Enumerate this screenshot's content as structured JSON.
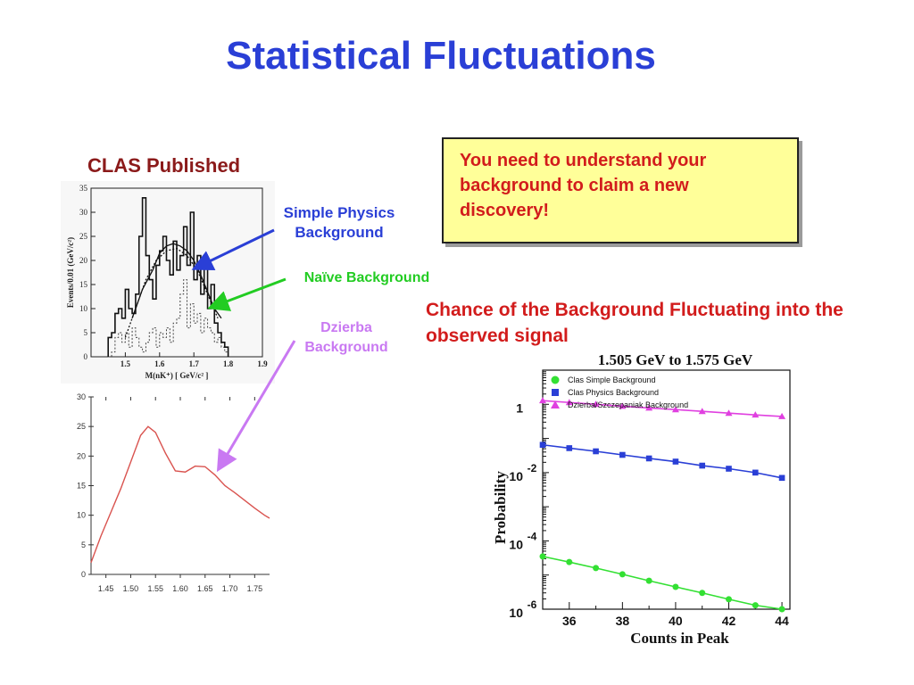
{
  "slide": {
    "title": "Statistical Fluctuations",
    "clas_heading": "CLAS Published",
    "callout_text": "You need to understand your background to claim a new discovery!",
    "chance_text": "Chance of the Background Fluctuating into the observed signal",
    "notes": {
      "simple_physics": "Simple Physics Background",
      "naive": "Naïve Background",
      "dzierba": "Dzierba Background"
    },
    "colors": {
      "title": "#2a3fd6",
      "clas_heading": "#8b1a1a",
      "simple_physics": "#2a3fd6",
      "naive": "#22cc22",
      "dzierba": "#c979f2",
      "callout_bg": "#ffff99",
      "red_text": "#d21c1c"
    }
  },
  "chart_data": [
    {
      "type": "histogram",
      "xlabel": "M(nK⁺) [ GeV/c² ]",
      "ylabel": "Events/0.01 (GeV/c²)",
      "xlim": [
        1.4,
        1.9
      ],
      "ylim": [
        0,
        35
      ],
      "xticks": [
        1.5,
        1.6,
        1.7,
        1.8,
        1.9
      ],
      "yticks": [
        0,
        5,
        10,
        15,
        20,
        25,
        30,
        35
      ],
      "bins": {
        "x0": [
          1.45,
          1.46,
          1.47,
          1.48,
          1.49,
          1.5,
          1.51,
          1.52,
          1.53,
          1.54,
          1.55,
          1.56,
          1.57,
          1.58,
          1.59,
          1.6,
          1.61,
          1.62,
          1.63,
          1.64,
          1.65,
          1.66,
          1.67,
          1.68,
          1.69,
          1.7,
          1.71,
          1.72,
          1.73,
          1.74,
          1.75,
          1.76,
          1.77,
          1.78,
          1.79
        ],
        "width": 0.01,
        "data": [
          4,
          5,
          9,
          10,
          8,
          14,
          10,
          9,
          13,
          25,
          33,
          21,
          16,
          12,
          19,
          22,
          25,
          20,
          17,
          24,
          18,
          21,
          27,
          19,
          30,
          16,
          21,
          13,
          20,
          10,
          15,
          7,
          5,
          3,
          2
        ],
        "dotted": [
          0,
          1,
          4,
          5,
          3,
          5,
          2,
          6,
          4,
          2,
          1,
          3,
          5,
          6,
          2,
          5,
          4,
          6,
          3,
          7,
          8,
          13,
          16,
          6,
          11,
          7,
          9,
          5,
          8,
          6,
          5,
          3,
          4,
          2,
          1
        ]
      },
      "fits": {
        "simple_physics": {
          "x": [
            1.52,
            1.55,
            1.58,
            1.6,
            1.62,
            1.64,
            1.66,
            1.68,
            1.7,
            1.72,
            1.74,
            1.76,
            1.78
          ],
          "y": [
            8,
            14,
            18,
            21.5,
            23,
            23.5,
            23,
            22,
            20,
            17,
            13.5,
            10,
            8
          ]
        },
        "naive": {
          "x": [
            1.5,
            1.53,
            1.56,
            1.59,
            1.62,
            1.65,
            1.68,
            1.71,
            1.74,
            1.77
          ],
          "y": [
            4,
            10,
            16,
            20,
            22,
            22.5,
            21,
            18,
            13,
            8
          ]
        }
      }
    },
    {
      "type": "line",
      "xlim": [
        1.42,
        1.78
      ],
      "ylim": [
        0,
        30
      ],
      "xticks": [
        1.45,
        1.5,
        1.55,
        1.6,
        1.65,
        1.7,
        1.75
      ],
      "xtick_labels": [
        "1.45",
        "1.50",
        "1.55",
        "1.60",
        "1.65",
        "1.70",
        "1.75"
      ],
      "yticks": [
        0,
        5,
        10,
        15,
        20,
        25,
        30
      ],
      "series": [
        {
          "x": [
            1.42,
            1.44,
            1.46,
            1.48,
            1.5,
            1.52,
            1.535,
            1.55,
            1.57,
            1.59,
            1.61,
            1.63,
            1.65,
            1.67,
            1.69,
            1.71,
            1.73,
            1.75,
            1.77,
            1.78
          ],
          "y": [
            2,
            6.5,
            10.5,
            14.5,
            19,
            23.5,
            25,
            24,
            20.5,
            17.5,
            17.3,
            18.3,
            18.2,
            16.8,
            15,
            13.8,
            12.5,
            11.2,
            10,
            9.5
          ],
          "color": "#d9534f"
        }
      ]
    },
    {
      "type": "scatter",
      "title": "1.505 GeV to 1.575 GeV",
      "xlabel": "Counts in Peak",
      "ylabel": "Probability",
      "scale_y": "log",
      "xlim": [
        35,
        44.3
      ],
      "ylim": [
        1e-06,
        10
      ],
      "xticks": [
        36,
        38,
        40,
        42,
        44
      ],
      "ytick_labels": [
        {
          "base": "1",
          "exp": ""
        },
        {
          "base": "10",
          "exp": "-2"
        },
        {
          "base": "10",
          "exp": "-4"
        },
        {
          "base": "10",
          "exp": "-6"
        }
      ],
      "ytick_values": [
        1,
        0.01,
        0.0001,
        1e-06
      ],
      "legend_position": "top-left",
      "series": [
        {
          "name": "Clas Simple Background",
          "marker": "circle",
          "color": "#33e033",
          "x": [
            35,
            36,
            37,
            38,
            39,
            40,
            41,
            42,
            43,
            44
          ],
          "y": [
            3.5e-05,
            2.4e-05,
            1.6e-05,
            1.05e-05,
            6.8e-06,
            4.5e-06,
            3e-06,
            1.95e-06,
            1.3e-06,
            1e-06
          ]
        },
        {
          "name": "Clas Physics Background",
          "marker": "square",
          "color": "#2a3fd6",
          "x": [
            35,
            36,
            37,
            38,
            39,
            40,
            41,
            42,
            43,
            44
          ],
          "y": [
            0.065,
            0.052,
            0.042,
            0.033,
            0.026,
            0.021,
            0.016,
            0.013,
            0.01,
            0.007
          ]
        },
        {
          "name": "Dzierba/Szczepaniak Background",
          "marker": "triangle",
          "color": "#e040e0",
          "x": [
            35,
            36,
            37,
            38,
            39,
            40,
            41,
            42,
            43,
            44
          ],
          "y": [
            1.28,
            1.13,
            1.0,
            0.88,
            0.78,
            0.7,
            0.62,
            0.55,
            0.49,
            0.44
          ]
        }
      ]
    }
  ]
}
